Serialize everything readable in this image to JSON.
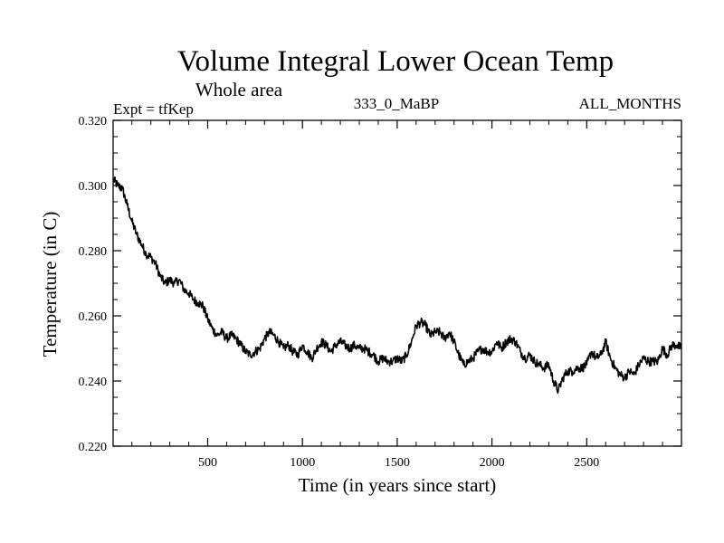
{
  "chart_data": {
    "type": "line",
    "title": "Volume Integral Lower Ocean Temp",
    "subtitle": "Whole area",
    "annotations": {
      "left": "Expt = tfKep",
      "center": "333_0_MaBP",
      "right": "ALL_MONTHS"
    },
    "xlabel": "Time (in years since start)",
    "ylabel": "Temperature (in C)",
    "xlim": [
      1,
      3000
    ],
    "ylim": [
      0.22,
      0.32
    ],
    "x_ticks": [
      500,
      1000,
      1500,
      2000,
      2500
    ],
    "x_tick_labels": [
      "500",
      "1000",
      "1500",
      "2000",
      "2500"
    ],
    "y_ticks": [
      0.22,
      0.24,
      0.26,
      0.28,
      0.3,
      0.32
    ],
    "y_tick_labels": [
      "0.220",
      "0.240",
      "0.260",
      "0.280",
      "0.300",
      "0.320"
    ],
    "grid": false,
    "series": [
      {
        "color": "#000000",
        "x": [
          1,
          25,
          50,
          75,
          100,
          125,
          150,
          175,
          200,
          225,
          250,
          275,
          300,
          325,
          350,
          375,
          400,
          425,
          450,
          475,
          500,
          525,
          550,
          575,
          600,
          625,
          650,
          675,
          700,
          725,
          750,
          775,
          800,
          825,
          850,
          875,
          900,
          925,
          950,
          975,
          1000,
          1025,
          1050,
          1075,
          1100,
          1125,
          1150,
          1175,
          1200,
          1225,
          1250,
          1275,
          1300,
          1325,
          1350,
          1375,
          1400,
          1425,
          1450,
          1475,
          1500,
          1525,
          1550,
          1575,
          1600,
          1625,
          1650,
          1675,
          1700,
          1725,
          1750,
          1775,
          1800,
          1825,
          1850,
          1875,
          1900,
          1925,
          1950,
          1975,
          2000,
          2025,
          2050,
          2075,
          2100,
          2125,
          2150,
          2175,
          2200,
          2225,
          2250,
          2275,
          2300,
          2325,
          2350,
          2375,
          2400,
          2425,
          2450,
          2475,
          2500,
          2525,
          2550,
          2575,
          2600,
          2625,
          2650,
          2675,
          2700,
          2725,
          2750,
          2775,
          2800,
          2825,
          2850,
          2875,
          2900,
          2925,
          2950,
          2975,
          3000
        ],
        "values": [
          0.302,
          0.3,
          0.299,
          0.294,
          0.289,
          0.285,
          0.282,
          0.279,
          0.278,
          0.276,
          0.272,
          0.27,
          0.271,
          0.27,
          0.271,
          0.268,
          0.267,
          0.265,
          0.264,
          0.263,
          0.259,
          0.256,
          0.254,
          0.255,
          0.253,
          0.254,
          0.253,
          0.251,
          0.249,
          0.248,
          0.249,
          0.25,
          0.253,
          0.255,
          0.254,
          0.252,
          0.25,
          0.251,
          0.249,
          0.248,
          0.251,
          0.249,
          0.247,
          0.25,
          0.252,
          0.251,
          0.249,
          0.251,
          0.252,
          0.251,
          0.25,
          0.251,
          0.25,
          0.25,
          0.249,
          0.248,
          0.246,
          0.247,
          0.246,
          0.246,
          0.247,
          0.246,
          0.248,
          0.252,
          0.257,
          0.258,
          0.257,
          0.254,
          0.255,
          0.255,
          0.253,
          0.255,
          0.252,
          0.248,
          0.245,
          0.246,
          0.247,
          0.249,
          0.25,
          0.249,
          0.249,
          0.252,
          0.25,
          0.252,
          0.253,
          0.252,
          0.249,
          0.247,
          0.248,
          0.246,
          0.245,
          0.244,
          0.245,
          0.24,
          0.237,
          0.241,
          0.243,
          0.243,
          0.244,
          0.244,
          0.245,
          0.249,
          0.247,
          0.248,
          0.252,
          0.247,
          0.244,
          0.242,
          0.241,
          0.243,
          0.242,
          0.245,
          0.247,
          0.246,
          0.246,
          0.246,
          0.25,
          0.248,
          0.251,
          0.251,
          0.25
        ]
      }
    ]
  }
}
